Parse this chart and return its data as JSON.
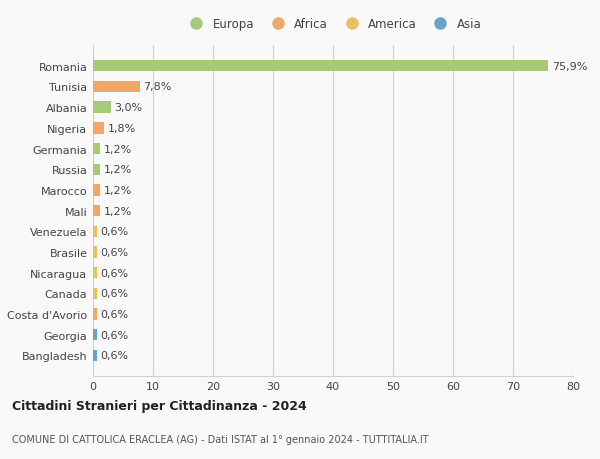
{
  "categories": [
    "Bangladesh",
    "Georgia",
    "Costa d'Avorio",
    "Canada",
    "Nicaragua",
    "Brasile",
    "Venezuela",
    "Mali",
    "Marocco",
    "Russia",
    "Germania",
    "Nigeria",
    "Albania",
    "Tunisia",
    "Romania"
  ],
  "values": [
    0.6,
    0.6,
    0.6,
    0.6,
    0.6,
    0.6,
    0.6,
    1.2,
    1.2,
    1.2,
    1.2,
    1.8,
    3.0,
    7.8,
    75.9
  ],
  "labels": [
    "0,6%",
    "0,6%",
    "0,6%",
    "0,6%",
    "0,6%",
    "0,6%",
    "0,6%",
    "1,2%",
    "1,2%",
    "1,2%",
    "1,2%",
    "1,8%",
    "3,0%",
    "7,8%",
    "75,9%"
  ],
  "colors": [
    "#6ba3c8",
    "#6ba3c8",
    "#f0a868",
    "#e8c060",
    "#e8c060",
    "#e8c060",
    "#e8c060",
    "#f0a868",
    "#f0a868",
    "#a8c87a",
    "#a8c87a",
    "#f0a868",
    "#a8c87a",
    "#f0a868",
    "#a8c87a"
  ],
  "legend_labels": [
    "Europa",
    "Africa",
    "America",
    "Asia"
  ],
  "legend_colors": [
    "#a8c87a",
    "#f0a868",
    "#e8c060",
    "#6ba3c8"
  ],
  "title": "Cittadini Stranieri per Cittadinanza - 2024",
  "subtitle": "COMUNE DI CATTOLICA ERACLEA (AG) - Dati ISTAT al 1° gennaio 2024 - TUTTITALIA.IT",
  "xlim": [
    0,
    80
  ],
  "xticks": [
    0,
    10,
    20,
    30,
    40,
    50,
    60,
    70,
    80
  ],
  "background_color": "#f9f9f9",
  "bar_height": 0.55,
  "grid_color": "#d0d0d0",
  "text_color": "#444444",
  "label_fontsize": 8,
  "tick_fontsize": 8,
  "ytick_fontsize": 8
}
